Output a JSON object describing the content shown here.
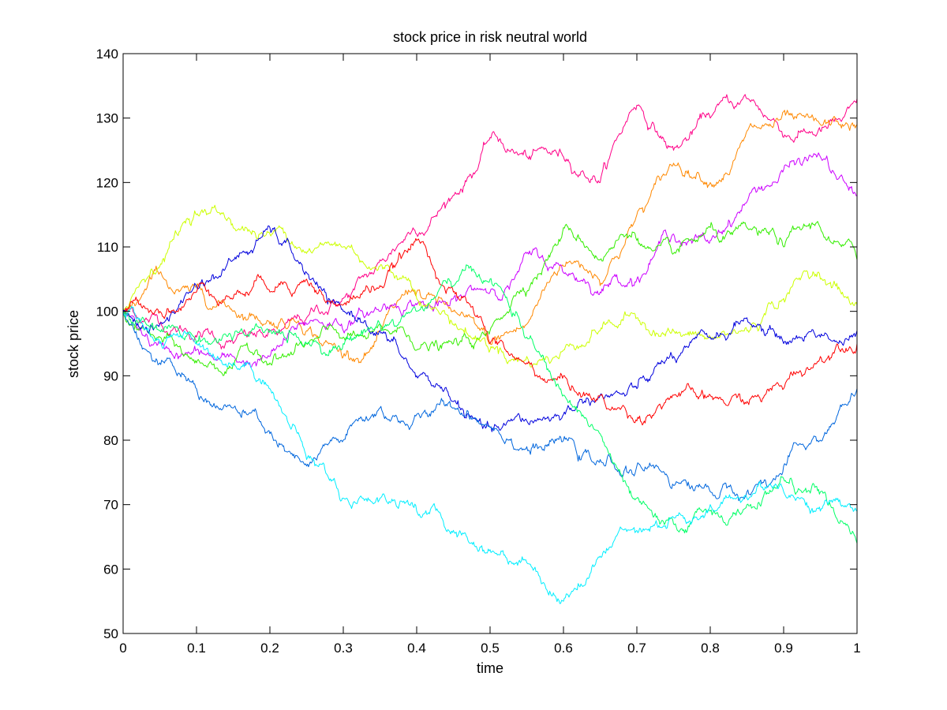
{
  "chart_data": {
    "type": "line",
    "title": "stock price in risk neutral world",
    "xlabel": "time",
    "ylabel": "stock price",
    "xlim": [
      0,
      1
    ],
    "ylim": [
      50,
      140
    ],
    "x_ticks": [
      "0",
      "0.1",
      "0.2",
      "0.3",
      "0.4",
      "0.5",
      "0.6",
      "0.7",
      "0.8",
      "0.9",
      "1"
    ],
    "y_ticks": [
      "50",
      "60",
      "70",
      "80",
      "90",
      "100",
      "110",
      "120",
      "130",
      "140"
    ],
    "grid": false,
    "legend": "none",
    "x": [
      0,
      0.05,
      0.1,
      0.15,
      0.2,
      0.25,
      0.3,
      0.35,
      0.4,
      0.45,
      0.5,
      0.55,
      0.6,
      0.65,
      0.7,
      0.75,
      0.8,
      0.85,
      0.9,
      0.95,
      1
    ],
    "series": [
      {
        "color": "#ff0088",
        "values": [
          100,
          98,
          96,
          95,
          97,
          99,
          102,
          108,
          112,
          118,
          127,
          124,
          124,
          120,
          132,
          125,
          130,
          133,
          127,
          128,
          133
        ]
      },
      {
        "color": "#ff8800",
        "values": [
          100,
          106,
          104,
          100,
          98,
          97,
          93,
          97,
          103,
          100,
          95,
          98,
          107,
          104,
          115,
          123,
          120,
          128,
          131,
          129,
          129
        ]
      },
      {
        "color": "#cc00ff",
        "values": [
          100,
          95,
          94,
          93,
          93,
          98,
          97,
          100,
          101,
          102,
          103,
          109,
          106,
          103,
          105,
          112,
          111,
          117,
          122,
          124,
          118
        ]
      },
      {
        "color": "#33ee00",
        "values": [
          100,
          96,
          92,
          92,
          92,
          95,
          96,
          98,
          94,
          95,
          97,
          103,
          113,
          108,
          111,
          109,
          113,
          113,
          110,
          113,
          108
        ]
      },
      {
        "color": "#ccff00",
        "values": [
          100,
          107,
          115,
          113,
          112,
          109,
          110,
          107,
          102,
          98,
          94,
          93,
          94,
          97,
          99,
          97,
          96,
          97,
          102,
          105,
          101
        ]
      },
      {
        "color": "#0000dd",
        "values": [
          100,
          98,
          104,
          108,
          113,
          106,
          100,
          97,
          90,
          86,
          82,
          83,
          84,
          87,
          88,
          93,
          96,
          99,
          95,
          96,
          97
        ]
      },
      {
        "color": "#ff0000",
        "values": [
          100,
          100,
          103,
          102,
          103,
          105,
          101,
          104,
          111,
          103,
          95,
          92,
          90,
          87,
          83,
          87,
          87,
          86,
          88,
          93,
          95
        ]
      },
      {
        "color": "#0066dd",
        "values": [
          100,
          92,
          88,
          85,
          81,
          76,
          80,
          85,
          84,
          85,
          82,
          79,
          80,
          77,
          76,
          73,
          72,
          72,
          76,
          80,
          88
        ]
      },
      {
        "color": "#00ff66",
        "values": [
          100,
          97,
          95,
          96,
          97,
          95,
          95,
          98,
          100,
          104,
          105,
          96,
          87,
          81,
          71,
          67,
          69,
          70,
          74,
          72,
          64
        ]
      },
      {
        "color": "#00eeff",
        "values": [
          100,
          95,
          95,
          92,
          88,
          77,
          71,
          71,
          69,
          66,
          63,
          61,
          55,
          62,
          66,
          68,
          70,
          71,
          72,
          69,
          69
        ]
      }
    ]
  }
}
